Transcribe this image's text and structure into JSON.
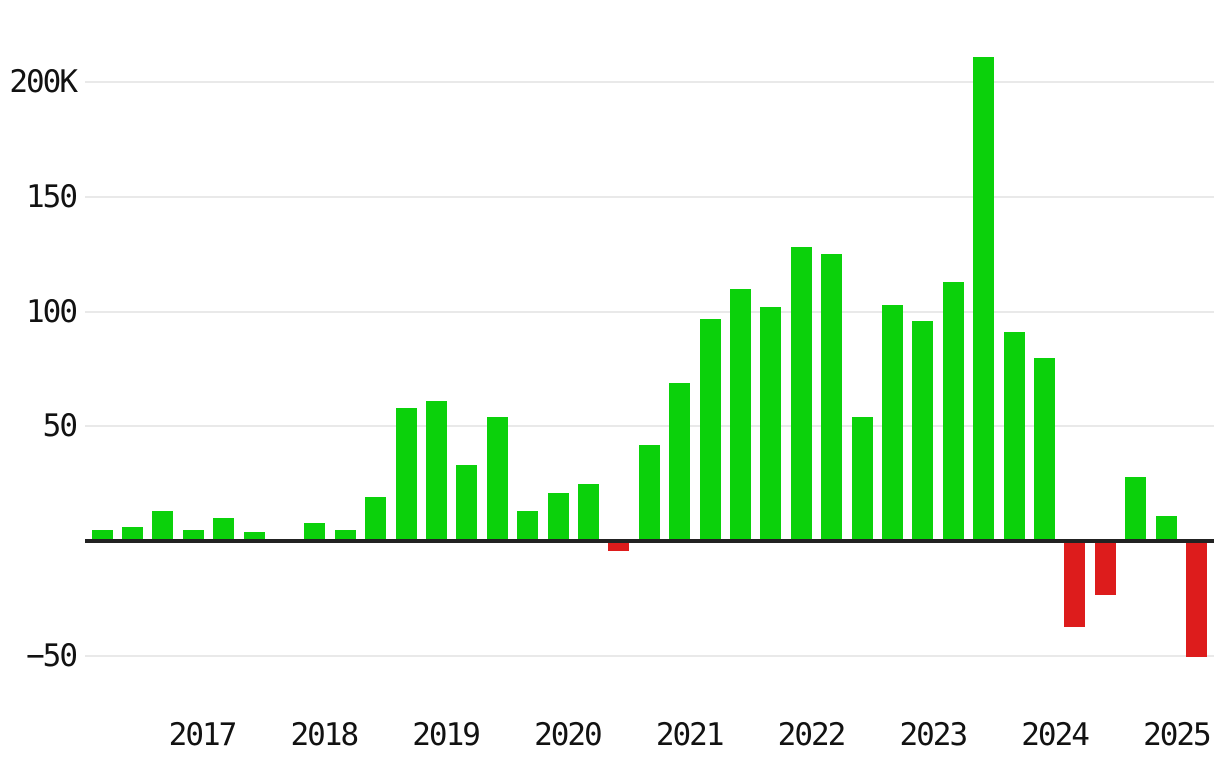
{
  "chart_data": {
    "type": "bar",
    "title": "",
    "series_name": "quarterly-change",
    "values_unit": "K",
    "categories": [
      "2016 Q1",
      "2016 Q2",
      "2016 Q3",
      "2016 Q4",
      "2017 Q1",
      "2017 Q2",
      "2017 Q3",
      "2017 Q4",
      "2018 Q1",
      "2018 Q2",
      "2018 Q3",
      "2018 Q4",
      "2019 Q1",
      "2019 Q2",
      "2019 Q3",
      "2019 Q4",
      "2020 Q1",
      "2020 Q2",
      "2020 Q3",
      "2020 Q4",
      "2021 Q1",
      "2021 Q2",
      "2021 Q3",
      "2021 Q4",
      "2022 Q1",
      "2022 Q2",
      "2022 Q3",
      "2022 Q4",
      "2023 Q1",
      "2023 Q2",
      "2023 Q3",
      "2023 Q4",
      "2024 Q1",
      "2024 Q2",
      "2024 Q3",
      "2024 Q4",
      "2025 Q1"
    ],
    "values": [
      5,
      6,
      13,
      5,
      10,
      4,
      1,
      8,
      5,
      19,
      58,
      61,
      33,
      54,
      13,
      21,
      25,
      -4,
      42,
      69,
      97,
      110,
      102,
      128,
      125,
      54,
      103,
      96,
      113,
      211,
      91,
      80,
      -37,
      -23,
      28,
      11,
      -50
    ],
    "x_axis": {
      "tick_labels": [
        "2017",
        "2018",
        "2019",
        "2020",
        "2021",
        "2022",
        "2023",
        "2024",
        "2025"
      ]
    },
    "y_axis": {
      "tick_labels": [
        "200K",
        "150",
        "100",
        "50",
        "−50"
      ],
      "tick_values": [
        200,
        150,
        100,
        50,
        -50
      ],
      "visible_range": [
        -70,
        235
      ]
    },
    "baseline": 0,
    "grid": "horizontal",
    "legend_position": "none",
    "colors": {
      "positive_bar": "#0bd10b",
      "negative_bar": "#dd1c1c",
      "zero_axis_line": "#222222",
      "gridline": "#e9e9e9",
      "tick_text": "#121212",
      "background": "#ffffff"
    }
  }
}
